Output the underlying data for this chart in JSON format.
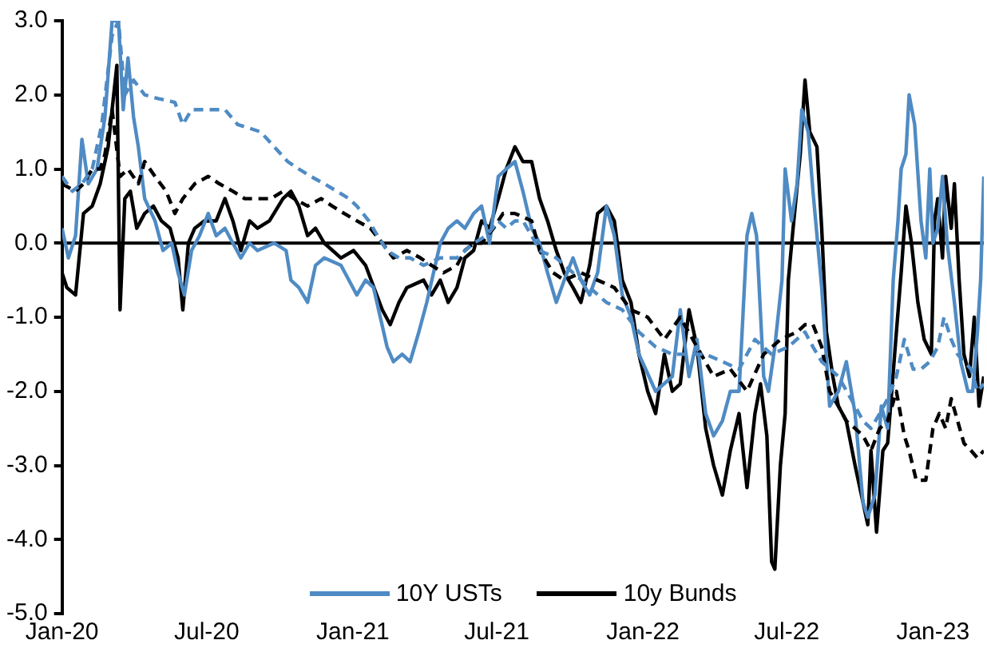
{
  "chart_data": {
    "type": "line",
    "legend": "bottom",
    "grid": false,
    "marker": "none",
    "xlim": [
      "2020-01-01",
      "2023-03-06"
    ],
    "xticks": [
      {
        "value": "2020-01-01",
        "label": "Jan-20"
      },
      {
        "value": "2020-07-01",
        "label": "Jul-20"
      },
      {
        "value": "2021-01-01",
        "label": "Jan-21"
      },
      {
        "value": "2021-07-01",
        "label": "Jul-21"
      },
      {
        "value": "2022-01-01",
        "label": "Jan-22"
      },
      {
        "value": "2022-07-01",
        "label": "Jul-22"
      },
      {
        "value": "2023-01-01",
        "label": "Jan-23"
      }
    ],
    "ylim": [
      -5,
      3
    ],
    "yticks": [
      {
        "value": -5,
        "label": "-5.0"
      },
      {
        "value": -4,
        "label": "-4.0"
      },
      {
        "value": -3,
        "label": "-3.0"
      },
      {
        "value": -2,
        "label": "-2.0"
      },
      {
        "value": -1,
        "label": "-1.0"
      },
      {
        "value": 0,
        "label": "0.0"
      },
      {
        "value": 1,
        "label": "1.0"
      },
      {
        "value": 2,
        "label": "2.0"
      },
      {
        "value": 3,
        "label": "3.0"
      }
    ],
    "ref_lines": [
      {
        "axis": "y",
        "value": 0,
        "color": "#000000"
      }
    ],
    "series": [
      {
        "color": "#4f8bc4",
        "line_style": "dashed",
        "x": [
          "2020-01-01",
          "2020-01-14",
          "2020-01-26",
          "2020-02-08",
          "2020-02-20",
          "2020-03-04",
          "2020-03-12",
          "2020-03-20",
          "2020-03-31",
          "2020-04-14",
          "2020-05-01",
          "2020-05-22",
          "2020-06-01",
          "2020-06-12",
          "2020-07-03",
          "2020-07-24",
          "2020-08-09",
          "2020-08-24",
          "2020-09-07",
          "2020-09-24",
          "2020-10-11",
          "2020-10-25",
          "2020-11-09",
          "2020-11-26",
          "2020-12-12",
          "2020-12-27",
          "2021-01-06",
          "2021-01-21",
          "2021-02-01",
          "2021-02-13",
          "2021-02-28",
          "2021-03-14",
          "2021-03-31",
          "2021-04-21",
          "2021-05-12",
          "2021-06-02",
          "2021-06-18",
          "2021-07-03",
          "2021-07-13",
          "2021-07-24",
          "2021-08-03",
          "2021-08-14",
          "2021-08-24",
          "2021-09-14",
          "2021-10-05",
          "2021-10-26",
          "2021-11-16",
          "2021-12-06",
          "2021-12-27",
          "2022-01-17",
          "2022-02-07",
          "2022-02-28",
          "2022-03-21",
          "2022-04-11",
          "2022-05-02",
          "2022-05-22",
          "2022-06-12",
          "2022-07-03",
          "2022-07-24",
          "2022-08-03",
          "2022-08-14",
          "2022-09-04",
          "2022-09-25",
          "2022-10-05",
          "2022-10-15",
          "2022-10-26",
          "2022-11-05",
          "2022-11-16",
          "2022-11-26",
          "2022-12-07",
          "2022-12-17",
          "2022-12-28",
          "2023-01-07",
          "2023-01-15",
          "2023-01-24",
          "2023-02-01",
          "2023-02-09",
          "2023-02-18",
          "2023-02-26",
          "2023-03-06"
        ],
        "values": [
          0.9,
          0.7,
          0.8,
          1.0,
          1.6,
          2.8,
          3.0,
          2.0,
          2.2,
          2.0,
          1.95,
          1.9,
          1.6,
          1.8,
          1.8,
          1.8,
          1.6,
          1.55,
          1.5,
          1.3,
          1.1,
          1.0,
          0.9,
          0.8,
          0.7,
          0.6,
          0.5,
          0.3,
          0.1,
          -0.1,
          -0.2,
          -0.2,
          -0.3,
          -0.2,
          -0.2,
          0.0,
          0.1,
          0.3,
          0.2,
          0.3,
          0.3,
          0.1,
          -0.1,
          -0.2,
          -0.4,
          -0.6,
          -0.8,
          -0.9,
          -1.2,
          -1.4,
          -1.5,
          -1.5,
          -1.5,
          -1.6,
          -1.7,
          -1.3,
          -1.5,
          -1.4,
          -1.2,
          -1.4,
          -1.6,
          -1.8,
          -2.2,
          -2.4,
          -2.5,
          -2.3,
          -2.1,
          -1.8,
          -1.3,
          -1.7,
          -1.7,
          -1.6,
          -1.4,
          -1.0,
          -1.3,
          -1.5,
          -1.6,
          -1.7,
          -2.0,
          -1.9
        ]
      },
      {
        "color": "#000000",
        "line_style": "dashed",
        "x": [
          "2020-01-01",
          "2020-01-18",
          "2020-01-28",
          "2020-02-08",
          "2020-02-18",
          "2020-02-24",
          "2020-03-04",
          "2020-03-14",
          "2020-03-24",
          "2020-04-06",
          "2020-04-14",
          "2020-04-27",
          "2020-05-11",
          "2020-05-22",
          "2020-06-01",
          "2020-06-16",
          "2020-07-03",
          "2020-07-17",
          "2020-08-03",
          "2020-08-18",
          "2020-09-03",
          "2020-09-20",
          "2020-10-05",
          "2020-10-19",
          "2020-11-05",
          "2020-11-22",
          "2020-12-06",
          "2020-12-21",
          "2021-01-06",
          "2021-01-23",
          "2021-02-07",
          "2021-02-21",
          "2021-03-10",
          "2021-03-27",
          "2021-04-10",
          "2021-04-25",
          "2021-05-12",
          "2021-05-22",
          "2021-06-02",
          "2021-06-12",
          "2021-06-27",
          "2021-07-09",
          "2021-07-24",
          "2021-08-14",
          "2021-08-24",
          "2021-09-10",
          "2021-09-24",
          "2021-10-15",
          "2021-11-05",
          "2021-11-26",
          "2021-12-17",
          "2022-01-07",
          "2022-01-28",
          "2022-02-17",
          "2022-03-10",
          "2022-03-31",
          "2022-04-21",
          "2022-05-12",
          "2022-06-02",
          "2022-06-23",
          "2022-07-14",
          "2022-07-24",
          "2022-08-03",
          "2022-08-14",
          "2022-08-24",
          "2022-09-04",
          "2022-09-14",
          "2022-09-25",
          "2022-10-05",
          "2022-10-15",
          "2022-10-26",
          "2022-11-05",
          "2022-11-16",
          "2022-11-26",
          "2022-12-02",
          "2022-12-11",
          "2022-12-23",
          "2023-01-01",
          "2023-01-09",
          "2023-01-17",
          "2023-01-24",
          "2023-02-01",
          "2023-02-09",
          "2023-02-18",
          "2023-02-26",
          "2023-03-06"
        ],
        "values": [
          0.8,
          0.7,
          0.8,
          1.0,
          1.0,
          1.2,
          1.8,
          0.9,
          1.0,
          0.8,
          1.1,
          0.9,
          0.7,
          0.4,
          0.6,
          0.8,
          0.9,
          0.8,
          0.7,
          0.6,
          0.6,
          0.6,
          0.7,
          0.6,
          0.5,
          0.6,
          0.5,
          0.4,
          0.3,
          0.2,
          0.0,
          -0.2,
          -0.1,
          -0.2,
          -0.3,
          -0.4,
          -0.3,
          -0.1,
          0.0,
          0.0,
          0.2,
          0.4,
          0.4,
          0.3,
          -0.1,
          -0.4,
          -0.5,
          -0.4,
          -0.5,
          -0.6,
          -0.9,
          -1.0,
          -1.3,
          -1.0,
          -1.4,
          -1.8,
          -1.7,
          -2.0,
          -1.5,
          -1.3,
          -1.2,
          -1.1,
          -1.1,
          -1.4,
          -2.0,
          -2.2,
          -2.4,
          -2.5,
          -2.6,
          -2.8,
          -2.5,
          -2.4,
          -2.0,
          -2.6,
          -2.8,
          -3.2,
          -3.2,
          -2.5,
          -2.3,
          -2.5,
          -2.1,
          -2.4,
          -2.7,
          -2.8,
          -2.9,
          -2.8
        ]
      },
      {
        "name": "10Y USTs",
        "color": "#4f8bc4",
        "line_style": "solid",
        "x": [
          "2020-01-01",
          "2020-01-09",
          "2020-01-18",
          "2020-01-26",
          "2020-02-03",
          "2020-02-14",
          "2020-02-24",
          "2020-03-04",
          "2020-03-12",
          "2020-03-18",
          "2020-03-24",
          "2020-03-31",
          "2020-04-06",
          "2020-04-14",
          "2020-04-27",
          "2020-05-07",
          "2020-05-18",
          "2020-05-26",
          "2020-06-03",
          "2020-06-12",
          "2020-06-22",
          "2020-07-03",
          "2020-07-13",
          "2020-07-24",
          "2020-08-03",
          "2020-08-13",
          "2020-08-24",
          "2020-09-03",
          "2020-09-24",
          "2020-10-09",
          "2020-10-15",
          "2020-10-25",
          "2020-11-05",
          "2020-11-15",
          "2020-11-26",
          "2020-12-17",
          "2021-01-06",
          "2021-01-17",
          "2021-01-27",
          "2021-02-13",
          "2021-02-21",
          "2021-03-04",
          "2021-03-14",
          "2021-03-25",
          "2021-04-04",
          "2021-04-21",
          "2021-05-01",
          "2021-05-12",
          "2021-05-22",
          "2021-06-02",
          "2021-06-12",
          "2021-06-22",
          "2021-07-03",
          "2021-07-13",
          "2021-07-24",
          "2021-08-03",
          "2021-08-14",
          "2021-08-24",
          "2021-09-03",
          "2021-09-14",
          "2021-09-24",
          "2021-10-05",
          "2021-10-15",
          "2021-10-26",
          "2021-11-05",
          "2021-11-16",
          "2021-11-26",
          "2021-12-06",
          "2021-12-17",
          "2021-12-27",
          "2022-01-17",
          "2022-02-07",
          "2022-02-17",
          "2022-02-28",
          "2022-03-10",
          "2022-03-21",
          "2022-03-31",
          "2022-04-11",
          "2022-04-21",
          "2022-05-02",
          "2022-05-12",
          "2022-05-18",
          "2022-05-24",
          "2022-06-02",
          "2022-06-08",
          "2022-06-16",
          "2022-06-25",
          "2022-06-29",
          "2022-07-07",
          "2022-07-14",
          "2022-07-20",
          "2022-07-28",
          "2022-08-03",
          "2022-08-14",
          "2022-08-24",
          "2022-09-04",
          "2022-09-14",
          "2022-09-25",
          "2022-10-05",
          "2022-10-11",
          "2022-10-20",
          "2022-10-28",
          "2022-11-05",
          "2022-11-12",
          "2022-11-18",
          "2022-11-22",
          "2022-11-28",
          "2022-12-02",
          "2022-12-09",
          "2022-12-17",
          "2022-12-23",
          "2022-12-28",
          "2023-01-01",
          "2023-01-07",
          "2023-01-13",
          "2023-01-19",
          "2023-01-28",
          "2023-02-05",
          "2023-02-14",
          "2023-02-20",
          "2023-02-26",
          "2023-03-02",
          "2023-03-06"
        ],
        "values": [
          0.2,
          -0.2,
          0.1,
          1.4,
          0.8,
          1.0,
          1.7,
          3.0,
          3.0,
          1.8,
          2.5,
          1.7,
          1.3,
          0.6,
          0.3,
          -0.1,
          0.0,
          -0.4,
          -0.7,
          -0.1,
          0.1,
          0.4,
          0.1,
          0.2,
          0.0,
          -0.2,
          0.0,
          -0.1,
          0.0,
          -0.1,
          -0.5,
          -0.6,
          -0.8,
          -0.3,
          -0.2,
          -0.3,
          -0.7,
          -0.5,
          -0.6,
          -1.4,
          -1.6,
          -1.5,
          -1.6,
          -1.2,
          -0.8,
          0.0,
          0.2,
          0.3,
          0.2,
          0.4,
          0.5,
          0.0,
          0.9,
          1.0,
          1.1,
          0.7,
          0.2,
          0.0,
          -0.4,
          -0.8,
          -0.5,
          -0.2,
          -0.5,
          -0.7,
          -0.4,
          0.5,
          0.1,
          -0.7,
          -1.0,
          -1.5,
          -2.0,
          -1.8,
          -0.9,
          -1.8,
          -1.3,
          -2.3,
          -2.6,
          -2.4,
          -2.0,
          -2.0,
          0.1,
          0.4,
          0.1,
          -1.8,
          -2.0,
          -1.4,
          -0.5,
          1.0,
          0.3,
          0.8,
          1.8,
          1.5,
          0.7,
          -0.6,
          -2.2,
          -2.0,
          -1.6,
          -2.3,
          -3.5,
          -3.7,
          -3.4,
          -2.2,
          -2.5,
          -0.5,
          0.3,
          1.0,
          1.2,
          2.0,
          1.6,
          0.3,
          -0.2,
          1.0,
          0.0,
          0.2,
          0.9,
          0.0,
          -0.8,
          -1.6,
          -2.0,
          -2.0,
          -1.2,
          -0.5,
          0.9
        ]
      },
      {
        "name": "10y Bunds",
        "color": "#000000",
        "line_style": "solid",
        "x": [
          "2020-01-01",
          "2020-01-07",
          "2020-01-18",
          "2020-01-28",
          "2020-02-08",
          "2020-02-18",
          "2020-02-28",
          "2020-03-06",
          "2020-03-10",
          "2020-03-14",
          "2020-03-20",
          "2020-03-27",
          "2020-04-04",
          "2020-04-14",
          "2020-04-25",
          "2020-05-05",
          "2020-05-16",
          "2020-05-26",
          "2020-06-01",
          "2020-06-08",
          "2020-06-16",
          "2020-06-28",
          "2020-07-13",
          "2020-07-24",
          "2020-08-03",
          "2020-08-13",
          "2020-08-24",
          "2020-09-03",
          "2020-09-18",
          "2020-10-05",
          "2020-10-15",
          "2020-10-25",
          "2020-11-05",
          "2020-11-15",
          "2020-11-26",
          "2020-12-17",
          "2021-01-02",
          "2021-01-17",
          "2021-02-07",
          "2021-02-17",
          "2021-02-28",
          "2021-03-10",
          "2021-03-31",
          "2021-04-10",
          "2021-04-21",
          "2021-05-01",
          "2021-05-12",
          "2021-05-22",
          "2021-06-02",
          "2021-06-12",
          "2021-06-22",
          "2021-07-03",
          "2021-07-13",
          "2021-07-24",
          "2021-08-03",
          "2021-08-14",
          "2021-08-24",
          "2021-09-03",
          "2021-09-14",
          "2021-09-24",
          "2021-10-05",
          "2021-10-15",
          "2021-10-26",
          "2021-11-05",
          "2021-11-16",
          "2021-11-26",
          "2021-12-06",
          "2021-12-17",
          "2021-12-27",
          "2022-01-07",
          "2022-01-17",
          "2022-01-28",
          "2022-02-07",
          "2022-02-17",
          "2022-02-28",
          "2022-03-10",
          "2022-03-21",
          "2022-03-31",
          "2022-04-11",
          "2022-04-21",
          "2022-05-02",
          "2022-05-12",
          "2022-05-22",
          "2022-05-29",
          "2022-06-06",
          "2022-06-12",
          "2022-06-16",
          "2022-06-23",
          "2022-06-29",
          "2022-07-03",
          "2022-07-09",
          "2022-07-18",
          "2022-07-24",
          "2022-07-30",
          "2022-08-08",
          "2022-08-14",
          "2022-08-20",
          "2022-08-28",
          "2022-09-04",
          "2022-09-14",
          "2022-09-25",
          "2022-10-05",
          "2022-10-11",
          "2022-10-15",
          "2022-10-22",
          "2022-10-30",
          "2022-11-05",
          "2022-11-16",
          "2022-11-22",
          "2022-11-28",
          "2022-12-05",
          "2022-12-13",
          "2022-12-21",
          "2022-12-30",
          "2023-01-03",
          "2023-01-07",
          "2023-01-13",
          "2023-01-17",
          "2023-01-24",
          "2023-01-28",
          "2023-02-03",
          "2023-02-09",
          "2023-02-16",
          "2023-02-22",
          "2023-02-28",
          "2023-03-06"
        ],
        "values": [
          -0.4,
          -0.6,
          -0.7,
          0.4,
          0.5,
          0.8,
          1.3,
          2.0,
          2.4,
          -0.9,
          0.6,
          0.7,
          0.2,
          0.4,
          0.5,
          0.3,
          0.2,
          -0.2,
          -0.9,
          0.0,
          0.2,
          0.3,
          0.3,
          0.6,
          0.3,
          -0.1,
          0.3,
          0.2,
          0.3,
          0.6,
          0.7,
          0.5,
          0.1,
          0.2,
          0.0,
          -0.2,
          -0.1,
          -0.3,
          -0.9,
          -1.1,
          -0.8,
          -0.6,
          -0.5,
          -0.7,
          -0.5,
          -0.8,
          -0.6,
          -0.2,
          -0.1,
          0.3,
          0.2,
          0.6,
          1.0,
          1.3,
          1.1,
          1.1,
          0.6,
          0.3,
          -0.1,
          -0.4,
          -0.6,
          -0.8,
          -0.3,
          0.4,
          0.5,
          0.3,
          -0.5,
          -0.8,
          -1.5,
          -2.0,
          -2.3,
          -1.5,
          -2.0,
          -1.9,
          -0.9,
          -1.4,
          -2.5,
          -3.0,
          -3.4,
          -2.8,
          -2.3,
          -3.3,
          -2.3,
          -1.9,
          -2.6,
          -4.3,
          -4.4,
          -3.0,
          -2.3,
          -0.5,
          0.2,
          1.2,
          2.2,
          1.5,
          1.3,
          0.2,
          -1.2,
          -1.8,
          -2.2,
          -2.4,
          -3.0,
          -3.5,
          -3.8,
          -2.8,
          -3.9,
          -2.8,
          -2.7,
          -1.2,
          -0.4,
          0.5,
          0.0,
          -0.8,
          -1.3,
          -1.5,
          0.3,
          0.6,
          -0.2,
          0.9,
          0.2,
          0.8,
          -0.5,
          -1.5,
          -1.8,
          -1.0,
          -2.2,
          -1.8
        ]
      }
    ]
  }
}
